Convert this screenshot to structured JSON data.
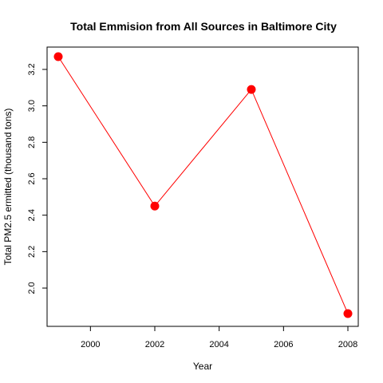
{
  "chart_data": {
    "type": "line",
    "title": "Total Emmision from All Sources in Baltimore City",
    "xlabel": "Year",
    "ylabel": "Total PM2.5 ermitted (thousand tons)",
    "x": [
      1999,
      2002,
      2005,
      2008
    ],
    "series": [
      {
        "values": [
          3.27,
          2.45,
          3.09,
          1.86
        ],
        "color": "#ff0000"
      }
    ],
    "xlim": [
      1999,
      2008
    ],
    "ylim": [
      1.86,
      3.27
    ],
    "xticks": [
      2000,
      2002,
      2004,
      2006,
      2008
    ],
    "yticks": [
      2.0,
      2.2,
      2.4,
      2.6,
      2.8,
      3.0,
      3.2
    ],
    "xtick_labels": [
      "2000",
      "2002",
      "2004",
      "2006",
      "2008"
    ],
    "ytick_labels": [
      "2.0",
      "2.2",
      "2.4",
      "2.6",
      "2.8",
      "3.0",
      "3.2"
    ],
    "grid": false,
    "marker": "filled-circle"
  }
}
